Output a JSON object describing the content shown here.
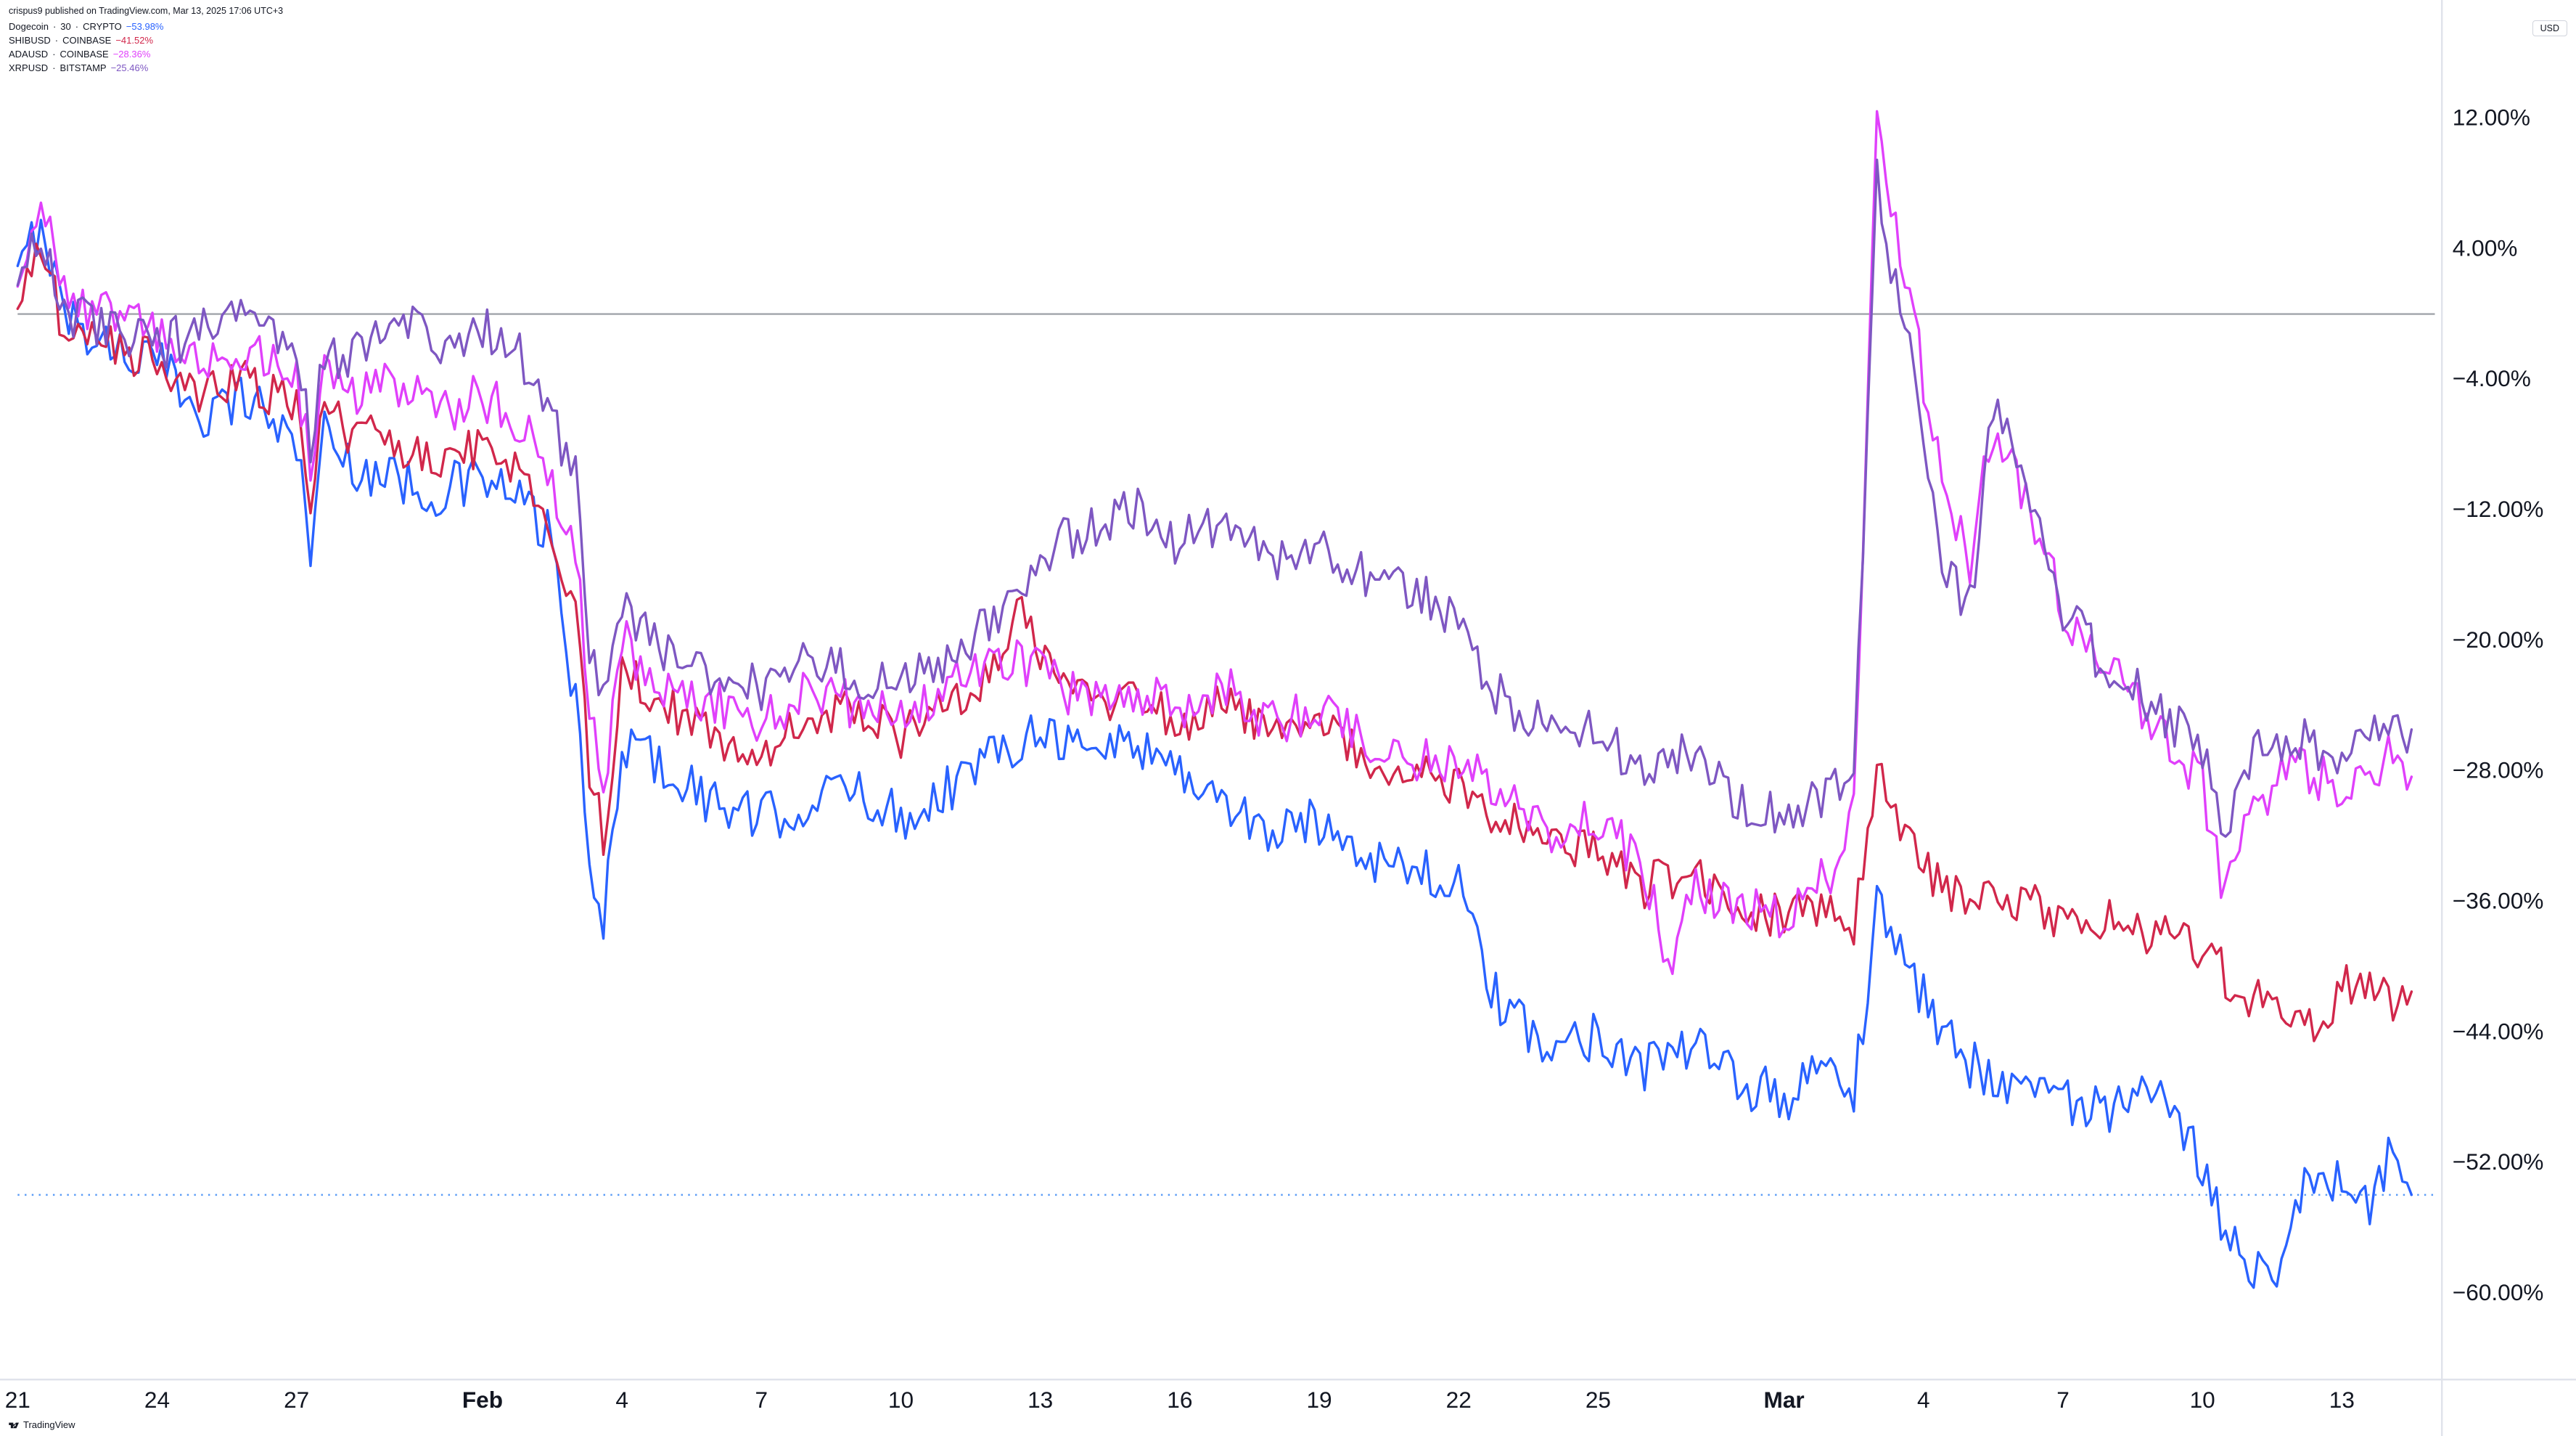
{
  "attribution": "crispus9 published on TradingView.com, Mar 13, 2025 17:06 UTC+3",
  "currency_badge": "USD",
  "tv_brand": "TradingView",
  "chart": {
    "type": "line",
    "background_color": "#ffffff",
    "grid_color": "#e0e3eb",
    "zero_line_color": "#a0a4aa",
    "dotted_marker_color": "#5b9cf6",
    "axis_text_color": "#131722",
    "axis_fontsize": 13,
    "line_width": 1.4,
    "ylim": [
      -64,
      16
    ],
    "yticks": [
      12,
      4,
      -4,
      -12,
      -20,
      -28,
      -36,
      -44,
      -52,
      -60
    ],
    "ytick_labels": [
      "12.00%",
      "4.00%",
      "−4.00%",
      "−12.00%",
      "−20.00%",
      "−28.00%",
      "−36.00%",
      "−44.00%",
      "−52.00%",
      "−60.00%"
    ],
    "x_range": [
      0,
      52
    ],
    "xticks": [
      {
        "x": 0,
        "label": "21",
        "bold": false
      },
      {
        "x": 3,
        "label": "24",
        "bold": false
      },
      {
        "x": 6,
        "label": "27",
        "bold": false
      },
      {
        "x": 10,
        "label": "Feb",
        "bold": true
      },
      {
        "x": 13,
        "label": "4",
        "bold": false
      },
      {
        "x": 16,
        "label": "7",
        "bold": false
      },
      {
        "x": 19,
        "label": "10",
        "bold": false
      },
      {
        "x": 22,
        "label": "13",
        "bold": false
      },
      {
        "x": 25,
        "label": "16",
        "bold": false
      },
      {
        "x": 28,
        "label": "19",
        "bold": false
      },
      {
        "x": 31,
        "label": "22",
        "bold": false
      },
      {
        "x": 34,
        "label": "25",
        "bold": false
      },
      {
        "x": 38,
        "label": "Mar",
        "bold": true
      },
      {
        "x": 41,
        "label": "4",
        "bold": false
      },
      {
        "x": 44,
        "label": "7",
        "bold": false
      },
      {
        "x": 47,
        "label": "10",
        "bold": false
      },
      {
        "x": 50,
        "label": "13",
        "bold": false
      }
    ],
    "dotted_marker_y": -53.98
  },
  "series": [
    {
      "name": "Dogecoin",
      "interval": "30",
      "exchange": "CRYPTO",
      "value_label": "−53.98%",
      "color": "#2962ff",
      "volatility": 1.6,
      "anchors": [
        [
          0,
          2
        ],
        [
          0.5,
          6
        ],
        [
          1,
          0
        ],
        [
          2,
          -2
        ],
        [
          3,
          -3
        ],
        [
          4,
          -6
        ],
        [
          5,
          -5
        ],
        [
          6,
          -8
        ],
        [
          6.3,
          -14
        ],
        [
          6.6,
          -7
        ],
        [
          7,
          -9
        ],
        [
          8,
          -10
        ],
        [
          9,
          -11
        ],
        [
          10,
          -10
        ],
        [
          11,
          -12
        ],
        [
          11.5,
          -14
        ],
        [
          12,
          -24
        ],
        [
          12.3,
          -34
        ],
        [
          12.6,
          -38
        ],
        [
          13,
          -26
        ],
        [
          14,
          -28
        ],
        [
          15,
          -30
        ],
        [
          16,
          -31
        ],
        [
          17,
          -30
        ],
        [
          18,
          -29
        ],
        [
          19,
          -31
        ],
        [
          20,
          -29
        ],
        [
          21,
          -27
        ],
        [
          22,
          -25
        ],
        [
          23,
          -27
        ],
        [
          24,
          -26
        ],
        [
          25,
          -28
        ],
        [
          26,
          -30
        ],
        [
          27,
          -32
        ],
        [
          28,
          -31
        ],
        [
          29,
          -33
        ],
        [
          30,
          -34
        ],
        [
          31,
          -35
        ],
        [
          31.5,
          -40
        ],
        [
          32,
          -43
        ],
        [
          33,
          -45
        ],
        [
          34,
          -44
        ],
        [
          35,
          -46
        ],
        [
          36,
          -45
        ],
        [
          37,
          -47
        ],
        [
          38,
          -48
        ],
        [
          39,
          -46
        ],
        [
          39.5,
          -48
        ],
        [
          40,
          -36
        ],
        [
          40.5,
          -39
        ],
        [
          41,
          -42
        ],
        [
          42,
          -46
        ],
        [
          43,
          -47
        ],
        [
          44,
          -48
        ],
        [
          45,
          -49
        ],
        [
          46,
          -48
        ],
        [
          47,
          -52
        ],
        [
          47.5,
          -56
        ],
        [
          48,
          -58
        ],
        [
          48.5,
          -59
        ],
        [
          49,
          -54
        ],
        [
          50,
          -53
        ],
        [
          50.5,
          -55
        ],
        [
          51,
          -52
        ],
        [
          51.5,
          -53.98
        ]
      ]
    },
    {
      "name": "SHIBUSD",
      "interval": null,
      "exchange": "COINBASE",
      "value_label": "−41.52%",
      "color": "#d1274b",
      "volatility": 1.4,
      "anchors": [
        [
          0,
          1
        ],
        [
          0.5,
          4
        ],
        [
          1,
          -1
        ],
        [
          2,
          -2
        ],
        [
          3,
          -3
        ],
        [
          4,
          -5
        ],
        [
          5,
          -4
        ],
        [
          6,
          -6
        ],
        [
          6.3,
          -11
        ],
        [
          6.6,
          -5
        ],
        [
          7,
          -7
        ],
        [
          8,
          -8
        ],
        [
          9,
          -9
        ],
        [
          10,
          -8
        ],
        [
          11,
          -10
        ],
        [
          12,
          -18
        ],
        [
          12.3,
          -28
        ],
        [
          12.6,
          -32
        ],
        [
          13,
          -22
        ],
        [
          14,
          -24
        ],
        [
          15,
          -26
        ],
        [
          16,
          -27
        ],
        [
          17,
          -25
        ],
        [
          18,
          -24
        ],
        [
          19,
          -26
        ],
        [
          20,
          -24
        ],
        [
          21,
          -22
        ],
        [
          21.5,
          -18
        ],
        [
          22,
          -21
        ],
        [
          23,
          -24
        ],
        [
          24,
          -23
        ],
        [
          25,
          -25
        ],
        [
          26,
          -24
        ],
        [
          27,
          -26
        ],
        [
          28,
          -25
        ],
        [
          29,
          -27
        ],
        [
          30,
          -28
        ],
        [
          31,
          -29
        ],
        [
          32,
          -31
        ],
        [
          33,
          -32
        ],
        [
          34,
          -33
        ],
        [
          35,
          -35
        ],
        [
          36,
          -34
        ],
        [
          37,
          -36
        ],
        [
          38,
          -37
        ],
        [
          39,
          -36
        ],
        [
          39.5,
          -38
        ],
        [
          40,
          -28
        ],
        [
          40.5,
          -31
        ],
        [
          41,
          -34
        ],
        [
          42,
          -36
        ],
        [
          43,
          -36
        ],
        [
          44,
          -37
        ],
        [
          45,
          -37
        ],
        [
          46,
          -38
        ],
        [
          47,
          -39
        ],
        [
          48,
          -42
        ],
        [
          49,
          -43
        ],
        [
          49.5,
          -44
        ],
        [
          50,
          -41
        ],
        [
          51,
          -42
        ],
        [
          51.5,
          -41.52
        ]
      ]
    },
    {
      "name": "ADAUSD",
      "interval": null,
      "exchange": "COINBASE",
      "value_label": "−28.36%",
      "color": "#e040fb",
      "volatility": 1.5,
      "anchors": [
        [
          0,
          3
        ],
        [
          0.5,
          7
        ],
        [
          1,
          1
        ],
        [
          2,
          0
        ],
        [
          3,
          -1
        ],
        [
          4,
          -3
        ],
        [
          5,
          -2
        ],
        [
          6,
          -4
        ],
        [
          6.3,
          -9
        ],
        [
          6.6,
          -3
        ],
        [
          7,
          -5
        ],
        [
          8,
          -4
        ],
        [
          9,
          -6
        ],
        [
          10,
          -5
        ],
        [
          11,
          -7
        ],
        [
          12,
          -14
        ],
        [
          12.3,
          -24
        ],
        [
          12.6,
          -30
        ],
        [
          13,
          -20
        ],
        [
          14,
          -23
        ],
        [
          15,
          -24
        ],
        [
          16,
          -25
        ],
        [
          17,
          -23
        ],
        [
          18,
          -24
        ],
        [
          19,
          -25
        ],
        [
          20,
          -23
        ],
        [
          21,
          -21
        ],
        [
          22,
          -22
        ],
        [
          23,
          -24
        ],
        [
          24,
          -23
        ],
        [
          25,
          -24
        ],
        [
          26,
          -23
        ],
        [
          27,
          -25
        ],
        [
          28,
          -24
        ],
        [
          29,
          -26
        ],
        [
          30,
          -27
        ],
        [
          31,
          -28
        ],
        [
          32,
          -29
        ],
        [
          33,
          -32
        ],
        [
          34,
          -31
        ],
        [
          35,
          -34
        ],
        [
          35.5,
          -40
        ],
        [
          36,
          -35
        ],
        [
          37,
          -36
        ],
        [
          38,
          -37
        ],
        [
          39,
          -34
        ],
        [
          39.5,
          -30
        ],
        [
          40,
          12
        ],
        [
          40.3,
          6
        ],
        [
          40.7,
          2
        ],
        [
          41,
          -4
        ],
        [
          41.5,
          -12
        ],
        [
          42,
          -15
        ],
        [
          42.5,
          -7
        ],
        [
          43,
          -10
        ],
        [
          43.5,
          -14
        ],
        [
          44,
          -18
        ],
        [
          45,
          -22
        ],
        [
          46,
          -25
        ],
        [
          47,
          -29
        ],
        [
          47.5,
          -36
        ],
        [
          48,
          -30
        ],
        [
          49,
          -28
        ],
        [
          50,
          -29
        ],
        [
          51,
          -27
        ],
        [
          51.5,
          -28.36
        ]
      ]
    },
    {
      "name": "XRPUSD",
      "interval": null,
      "exchange": "BITSTAMP",
      "value_label": "−25.46%",
      "color": "#7e57c2",
      "volatility": 1.5,
      "anchors": [
        [
          0,
          2
        ],
        [
          0.5,
          5
        ],
        [
          1,
          0
        ],
        [
          2,
          -1
        ],
        [
          3,
          -2
        ],
        [
          4,
          -1
        ],
        [
          5,
          0
        ],
        [
          6,
          -2
        ],
        [
          6.3,
          -8
        ],
        [
          6.6,
          -2
        ],
        [
          7,
          -3
        ],
        [
          8,
          0
        ],
        [
          9,
          -2
        ],
        [
          10,
          -1
        ],
        [
          11,
          -3
        ],
        [
          12,
          -10
        ],
        [
          12.3,
          -20
        ],
        [
          12.6,
          -24
        ],
        [
          13,
          -18
        ],
        [
          14,
          -21
        ],
        [
          15,
          -22
        ],
        [
          16,
          -23
        ],
        [
          17,
          -21
        ],
        [
          18,
          -22
        ],
        [
          19,
          -23
        ],
        [
          20,
          -21
        ],
        [
          21,
          -19
        ],
        [
          22,
          -15
        ],
        [
          23,
          -13
        ],
        [
          24,
          -12
        ],
        [
          25,
          -14
        ],
        [
          26,
          -13
        ],
        [
          27,
          -15
        ],
        [
          28,
          -14
        ],
        [
          29,
          -16
        ],
        [
          30,
          -17
        ],
        [
          31,
          -19
        ],
        [
          32,
          -24
        ],
        [
          33,
          -25
        ],
        [
          34,
          -26
        ],
        [
          35,
          -28
        ],
        [
          36,
          -27
        ],
        [
          37,
          -30
        ],
        [
          38,
          -31
        ],
        [
          39,
          -29
        ],
        [
          39.5,
          -28
        ],
        [
          40,
          8
        ],
        [
          40.3,
          3
        ],
        [
          40.7,
          -2
        ],
        [
          41,
          -8
        ],
        [
          41.5,
          -16
        ],
        [
          42,
          -18
        ],
        [
          42.5,
          -6
        ],
        [
          43,
          -9
        ],
        [
          43.5,
          -14
        ],
        [
          44,
          -18
        ],
        [
          45,
          -22
        ],
        [
          46,
          -24
        ],
        [
          47,
          -27
        ],
        [
          47.5,
          -32
        ],
        [
          48,
          -27
        ],
        [
          49,
          -26
        ],
        [
          50,
          -27
        ],
        [
          51,
          -25
        ],
        [
          51.5,
          -25.46
        ]
      ]
    }
  ]
}
